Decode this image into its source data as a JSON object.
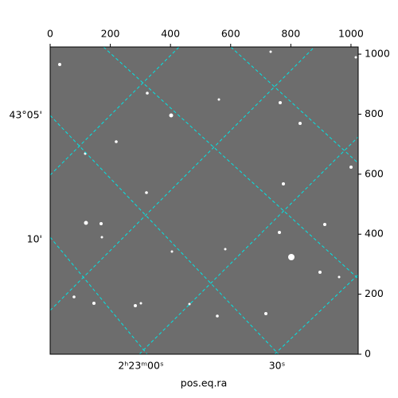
{
  "chart_data": {
    "type": "image",
    "xlabel": "pos.eq.ra",
    "xlim": [
      0,
      1024
    ],
    "ylim": [
      0,
      1024
    ],
    "xticks": [
      0,
      200,
      400,
      600,
      800,
      1000
    ],
    "yticks": [
      0,
      200,
      400,
      600,
      800,
      1000
    ],
    "ra_tick_labels": [
      "2ʰ23ᵐ00ˢ",
      "30ˢ"
    ],
    "dec_tick_labels": [
      "43°05'",
      "10'"
    ],
    "grid": true,
    "grid_color": "#00e5e5"
  }
}
